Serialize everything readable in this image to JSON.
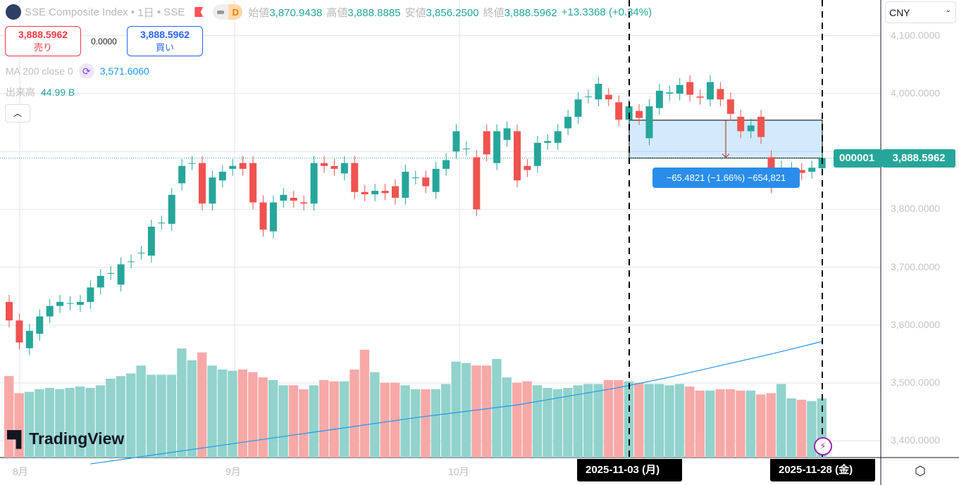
{
  "header": {
    "title": "SSE Composite Index",
    "interval": "1日",
    "exchange": "SSE",
    "interval_badge": "D",
    "ohlc": [
      {
        "k": "始値",
        "v": "3,870.9438"
      },
      {
        "k": "高値",
        "v": "3,888.8885"
      },
      {
        "k": "安値",
        "v": "3,856.2500"
      },
      {
        "k": "終値",
        "v": "3,888.5962"
      }
    ],
    "change": "+13.3368 (+0.34%)"
  },
  "trade": {
    "sell_price": "3,888.5962",
    "sell_label": "売り",
    "spread": "0.0000",
    "buy_price": "3,888.5962",
    "buy_label": "買い"
  },
  "indicators": {
    "ma_label": "MA 200 close 0",
    "ma_value": "3,571.6060",
    "volume_label": "出来高",
    "volume_value": "44.99 B"
  },
  "currency": "CNY",
  "price_axis": [
    "4,100.0000",
    "4,000.0000",
    "3,800.0000",
    "3,700.0000",
    "3,600.0000",
    "3,500.0000",
    "3,400.0000"
  ],
  "last_price": {
    "symbol": "000001",
    "price": "3,888.5962"
  },
  "measure": {
    "label": "−65.4821 (−1.66%) −654,821"
  },
  "time_axis": {
    "months": [
      "8月",
      "9月",
      "10月"
    ],
    "crosshair_start": "2025-11-03 (月)",
    "crosshair_end": "2025-11-28 (金)"
  },
  "brand": "TradingView",
  "colors": {
    "up": "#26a69a",
    "down": "#ef5350",
    "vol_up": "#92d3cc",
    "vol_down": "#f7a9a7",
    "ma": "#2196f3"
  },
  "chart_data": {
    "type": "candlestick",
    "y_range": [
      3360,
      4140
    ],
    "candles": [
      [
        3640,
        3608
      ],
      [
        3608,
        3570
      ],
      [
        3560,
        3590
      ],
      [
        3585,
        3615
      ],
      [
        3615,
        3633
      ],
      [
        3633,
        3640
      ],
      [
        3638,
        3638
      ],
      [
        3635,
        3640
      ],
      [
        3640,
        3665
      ],
      [
        3665,
        3685
      ],
      [
        3690,
        3690
      ],
      [
        3670,
        3705
      ],
      [
        3710,
        3710
      ],
      [
        3725,
        3725
      ],
      [
        3720,
        3770
      ],
      [
        3777,
        3777
      ],
      [
        3775,
        3825
      ],
      [
        3845,
        3875
      ],
      [
        3880,
        3880
      ],
      [
        3880,
        3810
      ],
      [
        3810,
        3855
      ],
      [
        3850,
        3865
      ],
      [
        3870,
        3875
      ],
      [
        3880,
        3870
      ],
      [
        3880,
        3812
      ],
      [
        3812,
        3765
      ],
      [
        3762,
        3812
      ],
      [
        3815,
        3825
      ],
      [
        3820,
        3815
      ],
      [
        3812,
        3810
      ],
      [
        3810,
        3880
      ],
      [
        3880,
        3875
      ],
      [
        3875,
        3870
      ],
      [
        3862,
        3880
      ],
      [
        3880,
        3830
      ],
      [
        3830,
        3826
      ],
      [
        3826,
        3832
      ],
      [
        3832,
        3828
      ],
      [
        3840,
        3820
      ],
      [
        3820,
        3865
      ],
      [
        3855,
        3855
      ],
      [
        3855,
        3840
      ],
      [
        3830,
        3870
      ],
      [
        3870,
        3885
      ],
      [
        3900,
        3935
      ],
      [
        3905,
        3905
      ],
      [
        3890,
        3800
      ],
      [
        3935,
        3895
      ],
      [
        3880,
        3935
      ],
      [
        3920,
        3940
      ],
      [
        3935,
        3850
      ],
      [
        3875,
        3868
      ],
      [
        3875,
        3915
      ],
      [
        3915,
        3918
      ],
      [
        3915,
        3935
      ],
      [
        3940,
        3960
      ],
      [
        3960,
        3990
      ],
      [
        3995,
        3995
      ],
      [
        3990,
        4017
      ],
      [
        3998,
        3990
      ],
      [
        3985,
        3955
      ],
      [
        3955,
        3978
      ],
      [
        3970,
        3958
      ],
      [
        3923,
        3978
      ],
      [
        3975,
        4005
      ],
      [
        4000,
        4002
      ],
      [
        4000,
        4015
      ],
      [
        4020,
        3998
      ],
      [
        3995,
        3993
      ],
      [
        3990,
        4020
      ],
      [
        4008,
        3990
      ],
      [
        3990,
        3965
      ],
      [
        3960,
        3935
      ],
      [
        3935,
        3945
      ],
      [
        3960,
        3925
      ],
      [
        3890,
        3840
      ],
      [
        3868,
        3872
      ],
      [
        3868,
        3870
      ],
      [
        3868,
        3863
      ],
      [
        3865,
        3872
      ],
      [
        3871,
        3888.6
      ]
    ],
    "volumes_b": [
      62,
      49,
      50,
      52,
      53,
      52,
      53,
      54,
      53,
      55,
      60,
      62,
      64,
      70,
      63,
      63,
      63,
      83,
      74,
      80,
      70,
      67,
      66,
      67,
      65,
      61,
      59,
      55,
      55,
      52,
      55,
      59,
      58,
      58,
      67,
      82,
      65,
      57,
      57,
      55,
      52,
      52,
      52,
      56,
      73,
      72,
      70,
      70,
      75,
      61,
      57,
      58,
      55,
      53,
      52,
      53,
      55,
      56,
      56,
      59,
      59,
      58,
      57,
      56,
      56,
      55,
      56,
      54,
      51,
      51,
      52,
      52,
      51,
      51,
      48,
      49,
      56,
      45,
      44,
      43,
      45
    ],
    "ma200": [
      [
        8,
        3360
      ],
      [
        20,
        3390
      ],
      [
        30,
        3415
      ],
      [
        40,
        3440
      ],
      [
        50,
        3462
      ],
      [
        60,
        3492
      ],
      [
        65,
        3510
      ],
      [
        70,
        3530
      ],
      [
        75,
        3550
      ],
      [
        80,
        3571.6
      ]
    ],
    "measure_range": {
      "from_index": 61,
      "to_index": 80,
      "from_price": 3954.08,
      "to_price": 3888.6
    }
  }
}
